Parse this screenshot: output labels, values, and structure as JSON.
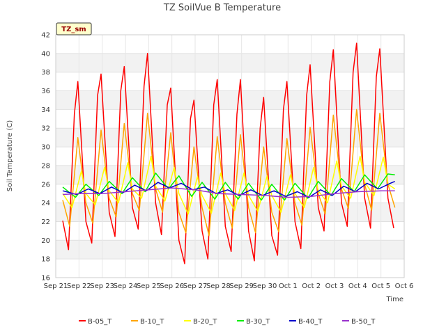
{
  "chart_data": {
    "type": "line",
    "title": "TZ SoilVue B Temperature",
    "xlabel": "Time",
    "ylabel": "Soil Temperature (C)",
    "tag": "TZ_sm",
    "ylim": [
      16,
      42
    ],
    "yticks": [
      16,
      18,
      20,
      22,
      24,
      26,
      28,
      30,
      32,
      34,
      36,
      38,
      40,
      42
    ],
    "xlim": [
      0,
      15
    ],
    "xticks": [
      {
        "pos": 0,
        "label": "Sep 21"
      },
      {
        "pos": 1,
        "label": "Sep 22"
      },
      {
        "pos": 2,
        "label": "Sep 23"
      },
      {
        "pos": 3,
        "label": "Sep 24"
      },
      {
        "pos": 4,
        "label": "Sep 25"
      },
      {
        "pos": 5,
        "label": "Sep 26"
      },
      {
        "pos": 6,
        "label": "Sep 27"
      },
      {
        "pos": 7,
        "label": "Sep 28"
      },
      {
        "pos": 8,
        "label": "Sep 29"
      },
      {
        "pos": 9,
        "label": "Sep 30"
      },
      {
        "pos": 10,
        "label": "Oct 1"
      },
      {
        "pos": 11,
        "label": "Oct 2"
      },
      {
        "pos": 12,
        "label": "Oct 3"
      },
      {
        "pos": 13,
        "label": "Oct 4"
      },
      {
        "pos": 14,
        "label": "Oct 5"
      },
      {
        "pos": 15,
        "label": "Oct 6"
      }
    ],
    "grid": true,
    "legend_position": "bottom",
    "series": [
      {
        "name": "B-05_T",
        "color": "#ff0000",
        "x": [
          0.3,
          0.55,
          0.8,
          0.95,
          1.3,
          1.55,
          1.8,
          1.95,
          2.3,
          2.55,
          2.8,
          2.95,
          3.3,
          3.55,
          3.8,
          3.95,
          4.3,
          4.55,
          4.8,
          4.95,
          5.3,
          5.55,
          5.8,
          5.95,
          6.3,
          6.55,
          6.8,
          6.95,
          7.3,
          7.55,
          7.8,
          7.95,
          8.3,
          8.55,
          8.8,
          8.95,
          9.3,
          9.55,
          9.8,
          9.95,
          10.3,
          10.55,
          10.8,
          10.95,
          11.3,
          11.55,
          11.8,
          11.95,
          12.3,
          12.55,
          12.8,
          12.95,
          13.3,
          13.55,
          13.8,
          13.95,
          14.3,
          14.55
        ],
        "y": [
          22.1,
          19,
          33.5,
          37,
          22,
          19.7,
          35.5,
          37.8,
          23,
          20.4,
          36,
          38.6,
          23.5,
          21.2,
          36.5,
          40,
          24,
          20.6,
          34.5,
          36.3,
          20,
          17.5,
          33,
          35,
          21,
          18,
          34.5,
          37.2,
          21.5,
          18.8,
          33.5,
          37.2,
          21,
          17.8,
          32,
          35.3,
          20.5,
          18.4,
          34,
          37,
          22,
          19.1,
          35.5,
          38.8,
          23.5,
          21,
          37,
          40.4,
          24,
          21.5,
          38,
          41.1,
          24.5,
          21.3,
          37.5,
          40.5,
          24.5,
          21.3
        ]
      },
      {
        "name": "B-10_T",
        "color": "#ffa500",
        "x": [
          0.3,
          0.6,
          0.95,
          1.3,
          1.6,
          1.95,
          2.3,
          2.6,
          2.95,
          3.3,
          3.6,
          3.95,
          4.3,
          4.6,
          4.95,
          5.3,
          5.6,
          5.95,
          6.3,
          6.6,
          6.95,
          7.3,
          7.6,
          7.95,
          8.3,
          8.6,
          8.95,
          9.3,
          9.6,
          9.95,
          10.3,
          10.6,
          10.95,
          11.3,
          11.6,
          11.95,
          12.3,
          12.6,
          12.95,
          13.3,
          13.6,
          13.95,
          14.3,
          14.6
        ],
        "y": [
          24.3,
          21.5,
          31,
          24,
          21.8,
          31.8,
          24.5,
          22.5,
          32.5,
          25,
          23.2,
          33.6,
          25.5,
          23,
          31.5,
          23,
          20.8,
          30,
          23.5,
          20.5,
          31.1,
          24,
          21.3,
          31.3,
          23.5,
          20.8,
          30,
          23,
          20.9,
          30.9,
          24,
          21.6,
          32.1,
          25,
          22.8,
          33.4,
          25.5,
          23.4,
          34,
          26,
          23.2,
          33.6,
          26,
          23.5
        ]
      },
      {
        "name": "B-20_T",
        "color": "#ffff00",
        "x": [
          0.3,
          0.7,
          1.1,
          1.3,
          1.7,
          2.1,
          2.3,
          2.7,
          3.1,
          3.3,
          3.7,
          4.1,
          4.3,
          4.7,
          5.1,
          5.3,
          5.7,
          6.1,
          6.3,
          6.7,
          7.1,
          7.3,
          7.7,
          8.1,
          8.3,
          8.7,
          9.1,
          9.3,
          9.7,
          10.1,
          10.3,
          10.7,
          11.1,
          11.3,
          11.7,
          12.1,
          12.3,
          12.7,
          13.1,
          13.3,
          13.7,
          14.1,
          14.3,
          14.6
        ],
        "y": [
          25,
          23.5,
          27.4,
          25,
          23.8,
          27.8,
          25.3,
          24,
          28.3,
          25.5,
          24.5,
          29,
          25.8,
          24.2,
          27.8,
          25,
          22.8,
          26.8,
          24.8,
          22.9,
          27.2,
          25,
          23.2,
          27.2,
          24.8,
          23.1,
          26.9,
          24.8,
          23,
          27,
          25,
          23.5,
          27.8,
          25.3,
          24,
          28.5,
          25.8,
          24.5,
          29,
          26.2,
          24.8,
          28.9,
          26,
          25.5
        ]
      },
      {
        "name": "B-30_T",
        "color": "#00ee00",
        "x": [
          0.3,
          0.85,
          1.3,
          1.85,
          2.3,
          2.85,
          3.3,
          3.85,
          4.3,
          4.85,
          5.3,
          5.85,
          6.3,
          6.85,
          7.3,
          7.85,
          8.3,
          8.85,
          9.3,
          9.85,
          10.3,
          10.85,
          11.3,
          11.85,
          12.3,
          12.85,
          13.3,
          13.85,
          14.3,
          14.6
        ],
        "y": [
          25.7,
          24.6,
          26,
          24.8,
          26.3,
          25,
          26.7,
          25.2,
          27.2,
          25.5,
          26.9,
          24.7,
          26.2,
          24.4,
          26.2,
          24.4,
          26.1,
          24.3,
          26,
          24.3,
          26.1,
          24.5,
          26.3,
          24.8,
          26.6,
          25.2,
          27,
          25.5,
          27.1,
          27
        ]
      },
      {
        "name": "B-40_T",
        "color": "#0000cc",
        "x": [
          0.3,
          0.9,
          1.4,
          1.9,
          2.4,
          2.9,
          3.4,
          3.9,
          4.4,
          4.9,
          5.4,
          5.9,
          6.4,
          6.9,
          7.4,
          7.9,
          8.4,
          8.9,
          9.4,
          9.9,
          10.4,
          10.9,
          11.4,
          11.9,
          12.4,
          12.9,
          13.4,
          13.9,
          14.4,
          14.6
        ],
        "y": [
          25.3,
          24.9,
          25.5,
          25,
          25.7,
          25.1,
          25.9,
          25.3,
          26.2,
          25.6,
          26.1,
          25.4,
          25.7,
          25,
          25.4,
          24.8,
          25.4,
          24.8,
          25.3,
          24.7,
          25.2,
          24.6,
          25.4,
          24.8,
          25.8,
          25.2,
          26.1,
          25.5,
          26.1,
          26.3
        ]
      },
      {
        "name": "B-50_T",
        "color": "#9932cc",
        "x": [
          0.3,
          1,
          2,
          3,
          4,
          5,
          6,
          7,
          8,
          9,
          10,
          11,
          12,
          13,
          14,
          14.6
        ],
        "y": [
          24.9,
          25,
          25,
          25.2,
          25.4,
          25.6,
          25.4,
          25,
          24.9,
          24.8,
          24.6,
          24.7,
          25,
          25.2,
          25.3,
          25.3
        ]
      }
    ]
  }
}
